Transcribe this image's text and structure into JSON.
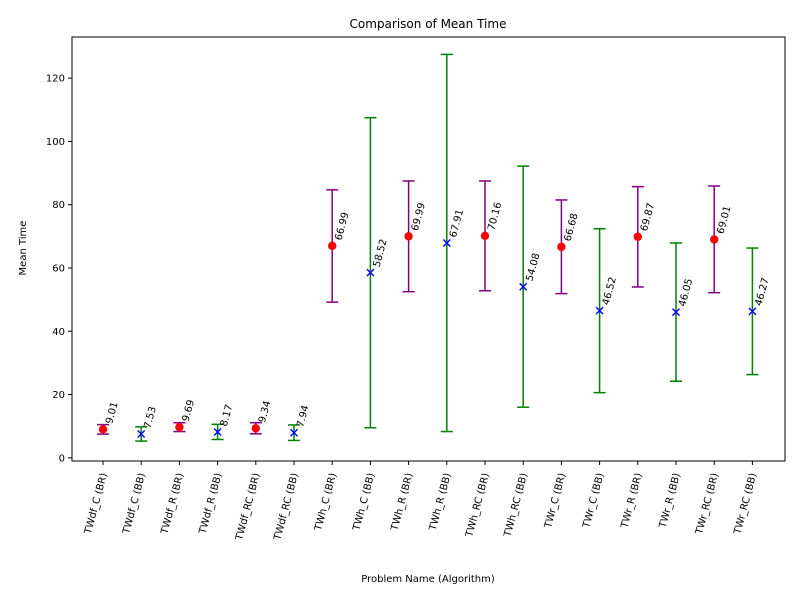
{
  "chart_data": {
    "type": "scatter",
    "title": "Comparison of Mean Time",
    "xlabel": "Problem Name (Algorithm)",
    "ylabel": "Mean Time",
    "ylim": [
      -1,
      133
    ],
    "yticks": [
      0,
      20,
      40,
      60,
      80,
      100,
      120
    ],
    "grid": false,
    "legend": "none",
    "colors": {
      "br_marker": "#ff0000",
      "br_errorbar": "#800080",
      "bb_marker": "#0000ff",
      "bb_errorbar": "#008000",
      "axis": "#000000"
    },
    "categories": [
      "TWdf_C (BR)",
      "TWdf_C (BB)",
      "TWdf_R (BR)",
      "TWdf_R (BB)",
      "TWdf_RC (BR)",
      "TWdf_RC (BB)",
      "TWh_C (BR)",
      "TWh_C (BB)",
      "TWh_R (BR)",
      "TWh_R (BB)",
      "TWh_RC (BR)",
      "TWh_RC (BB)",
      "TWr_C (BR)",
      "TWr_C (BB)",
      "TWr_R (BR)",
      "TWr_R (BB)",
      "TWr_RC (BR)",
      "TWr_RC (BB)"
    ],
    "points": [
      {
        "algo": "BR",
        "mean": 9.01,
        "low": 7.5,
        "high": 10.5,
        "label": "9.01"
      },
      {
        "algo": "BB",
        "mean": 7.53,
        "low": 5.3,
        "high": 9.8,
        "label": "7.53"
      },
      {
        "algo": "BR",
        "mean": 9.69,
        "low": 8.3,
        "high": 11.1,
        "label": "9.69"
      },
      {
        "algo": "BB",
        "mean": 8.17,
        "low": 5.8,
        "high": 10.6,
        "label": "8.17"
      },
      {
        "algo": "BR",
        "mean": 9.34,
        "low": 7.6,
        "high": 11.1,
        "label": "9.34"
      },
      {
        "algo": "BB",
        "mean": 7.94,
        "low": 5.5,
        "high": 10.4,
        "label": "7.94"
      },
      {
        "algo": "BR",
        "mean": 66.99,
        "low": 49.2,
        "high": 84.7,
        "label": "66.99"
      },
      {
        "algo": "BB",
        "mean": 58.52,
        "low": 9.5,
        "high": 107.5,
        "label": "58.52"
      },
      {
        "algo": "BR",
        "mean": 69.99,
        "low": 52.5,
        "high": 87.5,
        "label": "69.99"
      },
      {
        "algo": "BB",
        "mean": 67.91,
        "low": 8.3,
        "high": 127.5,
        "label": "67.91"
      },
      {
        "algo": "BR",
        "mean": 70.16,
        "low": 52.8,
        "high": 87.5,
        "label": "70.16"
      },
      {
        "algo": "BB",
        "mean": 54.08,
        "low": 16.0,
        "high": 92.2,
        "label": "54.08"
      },
      {
        "algo": "BR",
        "mean": 66.68,
        "low": 51.9,
        "high": 81.5,
        "label": "66.68"
      },
      {
        "algo": "BB",
        "mean": 46.52,
        "low": 20.6,
        "high": 72.4,
        "label": "46.52"
      },
      {
        "algo": "BR",
        "mean": 69.87,
        "low": 54.0,
        "high": 85.7,
        "label": "69.87"
      },
      {
        "algo": "BB",
        "mean": 46.05,
        "low": 24.2,
        "high": 67.9,
        "label": "46.05"
      },
      {
        "algo": "BR",
        "mean": 69.01,
        "low": 52.2,
        "high": 85.9,
        "label": "69.01"
      },
      {
        "algo": "BB",
        "mean": 46.27,
        "low": 26.3,
        "high": 66.3,
        "label": "46.27"
      }
    ]
  }
}
